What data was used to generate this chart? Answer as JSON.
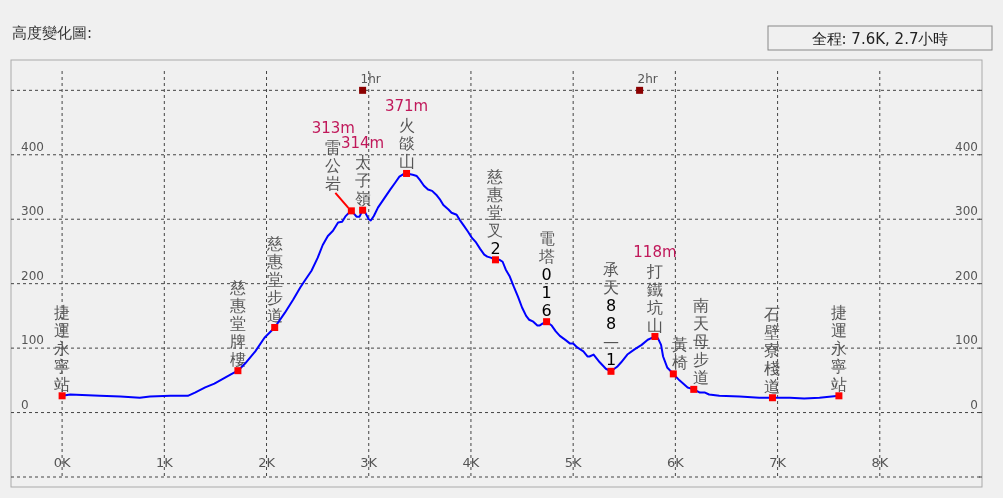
{
  "chart_data": {
    "type": "line",
    "title": "高度變化圖:",
    "annotations": [
      "全程: 7.6K, 2.7小時",
      {
        "text": "捷運永寧站",
        "x": 0,
        "y": 26
      },
      {
        "text": "慈惠堂牌樓",
        "x": 1.72,
        "y": 65
      },
      {
        "text": "慈惠堂步道",
        "x": 2.08,
        "y": 132
      },
      {
        "text": "雷公岩",
        "x": 2.83,
        "y": 313
      },
      "313m",
      {
        "text": "太子嶺",
        "x": 2.94,
        "y": 314
      },
      "314m",
      {
        "text": "火燄山",
        "x": 3.37,
        "y": 371
      },
      "371m",
      {
        "text": "慈惠堂叉2",
        "x": 4.24,
        "y": 237
      },
      {
        "text": "電塔016",
        "x": 4.74,
        "y": 141
      },
      {
        "text": "承天88—1",
        "x": 5.37,
        "y": 64
      },
      {
        "text": "打鐵坑山",
        "x": 5.8,
        "y": 118
      },
      "118m",
      {
        "text": "黃椅",
        "x": 5.98,
        "y": 60
      },
      {
        "text": "南天母步道",
        "x": 6.18,
        "y": 36
      },
      {
        "text": "石壁寮棧道",
        "x": 6.95,
        "y": 23
      },
      {
        "text": "捷運永寧站",
        "x": 7.6,
        "y": 26
      },
      {
        "text": "1hr",
        "x": 2.94,
        "y": 500
      },
      {
        "text": "2hr",
        "x": 5.65,
        "y": 500
      }
    ],
    "xlim": [
      -0.5,
      9
    ],
    "xticks": [
      {
        "value": 0,
        "label": "0K"
      },
      {
        "value": 1,
        "label": "1K"
      },
      {
        "value": 2,
        "label": "2K"
      },
      {
        "value": 3,
        "label": "3K"
      },
      {
        "value": 4,
        "label": "4K"
      },
      {
        "value": 5,
        "label": "5K"
      },
      {
        "value": 6,
        "label": "6K"
      },
      {
        "value": 7,
        "label": "7K"
      },
      {
        "value": 8,
        "label": "8K"
      }
    ],
    "ylim": [
      -100,
      530
    ],
    "yticks": [
      {
        "value": -100,
        "label": null
      },
      0,
      100,
      200,
      300,
      400,
      {
        "value": 500,
        "label": null
      }
    ],
    "y2lim": [
      -100,
      530
    ],
    "y2ticks": [
      {
        "value": -100,
        "label": null
      },
      0,
      100,
      200,
      300,
      400,
      {
        "value": 500,
        "label": null
      }
    ],
    "grid": true,
    "series": [
      {
        "color": "#0000ff",
        "marker": "none",
        "line_style": "solid",
        "x": [
          0,
          0.08,
          0.37,
          0.57,
          0.76,
          0.86,
          1.06,
          1.15,
          1.23,
          1.3,
          1.4,
          1.49,
          1.59,
          1.66,
          1.72,
          1.79,
          1.89,
          1.98,
          2.08,
          2.18,
          2.26,
          2.33,
          2.38,
          2.44,
          2.5,
          2.55,
          2.6,
          2.65,
          2.7,
          2.74,
          2.77,
          2.8,
          2.83,
          2.86,
          2.88,
          2.91,
          2.94,
          2.96,
          2.98,
          3,
          3.02,
          3.05,
          3.09,
          3.15,
          3.21,
          3.26,
          3.3,
          3.34,
          3.37,
          3.43,
          3.47,
          3.5,
          3.54,
          3.58,
          3.62,
          3.66,
          3.7,
          3.73,
          3.78,
          3.81,
          3.86,
          3.89,
          3.93,
          3.97,
          4.01,
          4.05,
          4.09,
          4.13,
          4.16,
          4.2,
          4.24,
          4.28,
          4.31,
          4.34,
          4.38,
          4.42,
          4.46,
          4.5,
          4.54,
          4.57,
          4.61,
          4.65,
          4.67,
          4.7,
          4.74,
          4.79,
          4.83,
          4.87,
          4.93,
          4.97,
          5,
          5.04,
          5.1,
          5.14,
          5.16,
          5.2,
          5.26,
          5.32,
          5.37,
          5.43,
          5.47,
          5.53,
          5.6,
          5.67,
          5.73,
          5.77,
          5.8,
          5.83,
          5.86,
          5.88,
          5.92,
          5.98,
          6.04,
          6.12,
          6.18,
          6.24,
          6.29,
          6.33,
          6.43,
          6.63,
          6.82,
          6.95,
          7.12,
          7.26,
          7.41,
          7.6
        ],
        "values": [
          26,
          28,
          26,
          25,
          23,
          25,
          26,
          26,
          26,
          31,
          39,
          45,
          54,
          60,
          65,
          76,
          95,
          116,
          132,
          155,
          175,
          194,
          206,
          220,
          240,
          260,
          274,
          282,
          295,
          296,
          304,
          309,
          313,
          308,
          304,
          304,
          314,
          312,
          306,
          300,
          298,
          305,
          318,
          332,
          346,
          357,
          366,
          370,
          371,
          369,
          367,
          361,
          352,
          346,
          344,
          338,
          330,
          322,
          315,
          310,
          307,
          299,
          290,
          281,
          271,
          264,
          254,
          245,
          242,
          240,
          237,
          237,
          234,
          222,
          211,
          195,
          180,
          163,
          150,
          144,
          141,
          135,
          135,
          138,
          141,
          135,
          126,
          119,
          112,
          107,
          107,
          101,
          95,
          87,
          87,
          90,
          78,
          68,
          64,
          71,
          78,
          90,
          98,
          105,
          113,
          116,
          118,
          115,
          105,
          87,
          70,
          60,
          50,
          39,
          36,
          31,
          31,
          28,
          26,
          25,
          23,
          23,
          23,
          22,
          23,
          26
        ]
      },
      {
        "type": "scatter",
        "color": "#ff0000",
        "marker": "square",
        "x": [
          0,
          1.72,
          2.08,
          2.83,
          2.94,
          3.37,
          4.24,
          4.74,
          5.37,
          5.8,
          5.98,
          6.18,
          6.95,
          7.6
        ],
        "values": [
          26,
          65,
          132,
          313,
          314,
          371,
          237,
          141,
          64,
          118,
          60,
          36,
          23,
          26
        ]
      },
      {
        "type": "scatter",
        "color": "#8b0000",
        "marker": "square",
        "x": [
          2.94,
          5.65
        ],
        "values": [
          500,
          500
        ]
      }
    ]
  }
}
